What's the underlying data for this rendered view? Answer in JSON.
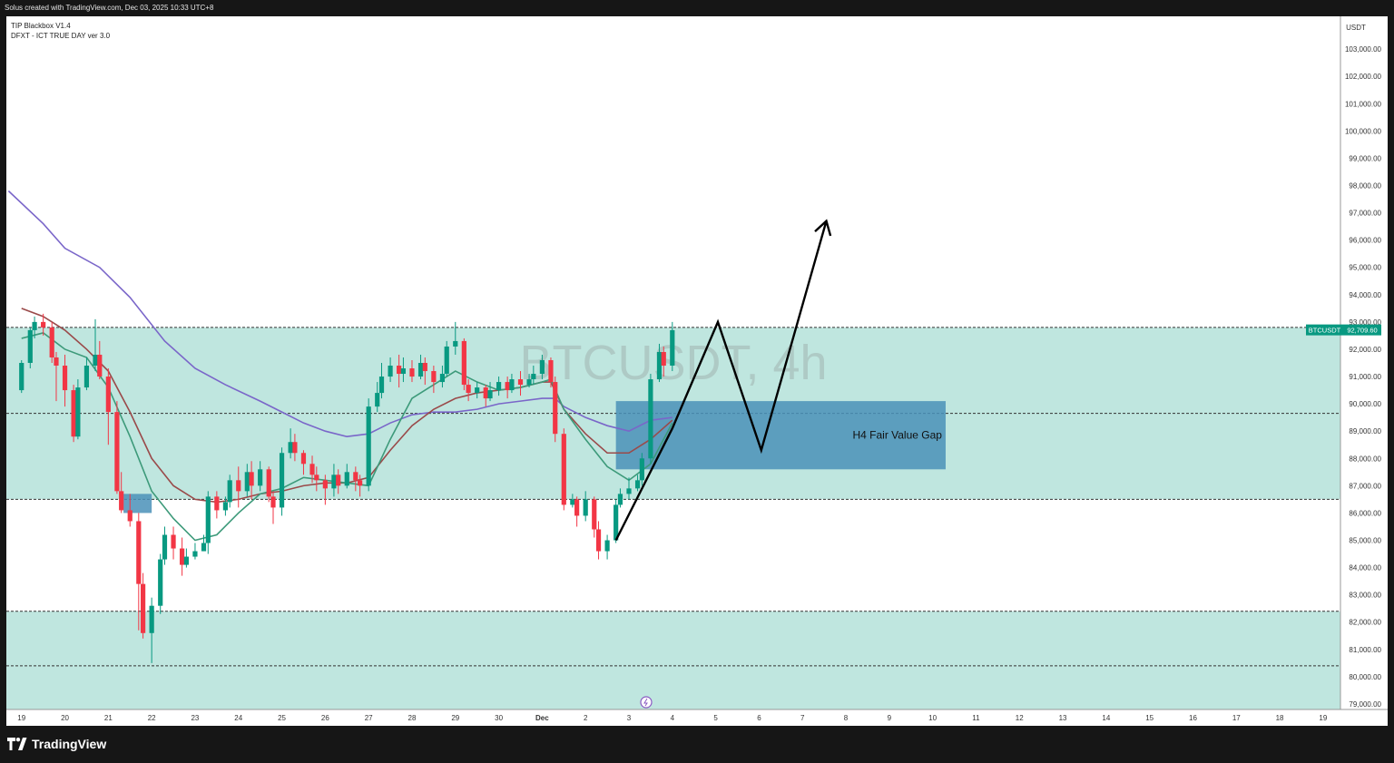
{
  "header": {
    "attribution": "Solus created with TradingView.com, Dec 03, 2025 10:33 UTC+8"
  },
  "indicators": [
    "TIP Blackbox V1.4",
    "DFXT - ICT TRUE DAY ver 3.0"
  ],
  "brand": {
    "name": "TradingView"
  },
  "watermark": "BTCUSDT, 4h",
  "colors": {
    "up": "#089981",
    "down": "#f23645",
    "zone": "#bfe6df",
    "fvg": "#4a90b8",
    "ema_green": "#3d9a7a",
    "ema_red": "#9a4a4a",
    "ema_purple": "#7a66c9"
  },
  "chart_data": {
    "type": "candlestick",
    "symbol": "BTCUSDT",
    "timeframe": "4h",
    "currency": "USDT",
    "last_price_label": "92,709.60",
    "last_price": 92709.6,
    "ylim": [
      78800,
      104200
    ],
    "y_ticks": [
      "103,000.00",
      "102,000.00",
      "101,000.00",
      "100,000.00",
      "99,000.00",
      "98,000.00",
      "97,000.00",
      "96,000.00",
      "95,000.00",
      "94,000.00",
      "93,000.00",
      "92,000.00",
      "91,000.00",
      "90,000.00",
      "89,000.00",
      "88,000.00",
      "87,000.00",
      "86,000.00",
      "85,000.00",
      "84,000.00",
      "83,000.00",
      "82,000.00",
      "81,000.00",
      "80,000.00",
      "79,000.00"
    ],
    "x_ticks": [
      "19",
      "20",
      "21",
      "22",
      "23",
      "24",
      "25",
      "26",
      "27",
      "28",
      "29",
      "30",
      "Dec",
      "2",
      "3",
      "4",
      "5",
      "6",
      "7",
      "8",
      "9",
      "10",
      "11",
      "12",
      "13",
      "14",
      "15",
      "16",
      "17",
      "18",
      "19"
    ],
    "x_tick_days": [
      19,
      20,
      21,
      22,
      23,
      24,
      25,
      26,
      27,
      28,
      29,
      30,
      31,
      32,
      33,
      34,
      35,
      36,
      37,
      38,
      39,
      40,
      41,
      42,
      43,
      44,
      45,
      46,
      47,
      48,
      49
    ],
    "xlim": [
      18.65,
      49.4
    ],
    "zones": [
      {
        "from": 86500,
        "to": 92800
      },
      {
        "from": 78800,
        "to": 82400
      }
    ],
    "dashed_levels": [
      92800,
      89650,
      86500,
      82400,
      80400
    ],
    "fvg": {
      "label": "H4 Fair Value Gap",
      "from": 87600,
      "to": 90100,
      "x_start": 32.7,
      "x_end": 40.3
    },
    "small_fvg": {
      "from": 86000,
      "to": 86700,
      "x_start": 21.35,
      "x_end": 22.0
    },
    "candles": [
      [
        19.0,
        90500,
        91500,
        90400,
        91600
      ],
      [
        19.2,
        91500,
        92700,
        91300,
        92800
      ],
      [
        19.3,
        92700,
        93000,
        92400,
        93200
      ],
      [
        19.5,
        93000,
        92800,
        92500,
        93300
      ],
      [
        19.7,
        92800,
        91700,
        91500,
        93000
      ],
      [
        19.8,
        91700,
        91400,
        90100,
        91900
      ],
      [
        20.0,
        91400,
        90500,
        89900,
        91800
      ],
      [
        20.2,
        90500,
        88800,
        88600,
        90700
      ],
      [
        20.3,
        88800,
        90600,
        88700,
        90900
      ],
      [
        20.5,
        90600,
        91400,
        90500,
        91700
      ],
      [
        20.7,
        91400,
        91800,
        91200,
        93100
      ],
      [
        20.8,
        91800,
        91000,
        90900,
        92300
      ],
      [
        21.0,
        91000,
        89700,
        88500,
        91300
      ],
      [
        21.2,
        89700,
        86800,
        86700,
        90100
      ],
      [
        21.3,
        86800,
        86100,
        86000,
        87500
      ],
      [
        21.5,
        86100,
        85700,
        85500,
        86700
      ],
      [
        21.7,
        85700,
        83400,
        81700,
        86000
      ],
      [
        21.8,
        83400,
        81600,
        81400,
        83800
      ],
      [
        22.0,
        81600,
        82600,
        80500,
        82900
      ],
      [
        22.2,
        82600,
        84300,
        82300,
        84500
      ],
      [
        22.3,
        84300,
        85200,
        84100,
        85500
      ],
      [
        22.5,
        85200,
        84700,
        84300,
        85500
      ],
      [
        22.7,
        84700,
        84100,
        83700,
        85100
      ],
      [
        22.8,
        84100,
        84400,
        84000,
        84700
      ],
      [
        23.0,
        84400,
        84600,
        84300,
        84900
      ],
      [
        23.2,
        84600,
        84900,
        84600,
        85200
      ],
      [
        23.3,
        84900,
        86600,
        84500,
        86800
      ],
      [
        23.5,
        86600,
        86100,
        85800,
        86800
      ],
      [
        23.7,
        86100,
        86400,
        85900,
        86600
      ],
      [
        23.8,
        86400,
        87200,
        86200,
        87400
      ],
      [
        24.0,
        87200,
        86800,
        86200,
        87700
      ],
      [
        24.2,
        86800,
        87500,
        86600,
        87800
      ],
      [
        24.3,
        87500,
        87000,
        86500,
        87900
      ],
      [
        24.5,
        87000,
        87600,
        86800,
        87900
      ],
      [
        24.7,
        87600,
        86600,
        86400,
        87700
      ],
      [
        24.8,
        86600,
        86200,
        85600,
        86800
      ],
      [
        25.0,
        86200,
        88200,
        85900,
        88400
      ],
      [
        25.2,
        88200,
        88600,
        88000,
        89100
      ],
      [
        25.3,
        88600,
        88200,
        87900,
        88900
      ],
      [
        25.5,
        88200,
        87800,
        87400,
        88300
      ],
      [
        25.7,
        87800,
        87400,
        87100,
        88100
      ],
      [
        25.8,
        87400,
        87200,
        86800,
        87700
      ],
      [
        26.0,
        87200,
        86900,
        86300,
        87400
      ],
      [
        26.2,
        86900,
        87400,
        86600,
        87800
      ],
      [
        26.3,
        87400,
        87000,
        86700,
        87600
      ],
      [
        26.5,
        87000,
        87500,
        86900,
        87800
      ],
      [
        26.7,
        87500,
        87200,
        86800,
        87700
      ],
      [
        26.8,
        87200,
        87000,
        86600,
        87400
      ],
      [
        27.0,
        87000,
        89900,
        86800,
        90200
      ],
      [
        27.2,
        89900,
        90400,
        89700,
        90800
      ],
      [
        27.3,
        90400,
        91000,
        90200,
        91500
      ],
      [
        27.5,
        91000,
        91400,
        90800,
        91700
      ],
      [
        27.7,
        91400,
        91100,
        90600,
        91800
      ],
      [
        27.8,
        91100,
        91300,
        90800,
        91700
      ],
      [
        28.0,
        91300,
        91000,
        90800,
        91600
      ],
      [
        28.2,
        91000,
        91500,
        90900,
        91800
      ],
      [
        28.3,
        91500,
        91200,
        90700,
        91700
      ],
      [
        28.5,
        91200,
        90800,
        90400,
        91400
      ],
      [
        28.7,
        90800,
        91100,
        90600,
        91400
      ],
      [
        28.8,
        91100,
        92100,
        91000,
        92300
      ],
      [
        29.0,
        92100,
        92300,
        91800,
        93000
      ],
      [
        29.2,
        92300,
        90700,
        90500,
        92400
      ],
      [
        29.3,
        90700,
        90400,
        90100,
        90900
      ],
      [
        29.5,
        90400,
        90600,
        90200,
        90800
      ],
      [
        29.7,
        90600,
        90200,
        89900,
        90700
      ],
      [
        29.8,
        90200,
        90500,
        90100,
        90800
      ],
      [
        30.0,
        90500,
        90800,
        90300,
        91000
      ],
      [
        30.2,
        90800,
        90500,
        90200,
        91000
      ],
      [
        30.3,
        90500,
        90900,
        90400,
        91100
      ],
      [
        30.5,
        90900,
        90700,
        90300,
        91200
      ],
      [
        30.7,
        90700,
        90900,
        90600,
        91100
      ],
      [
        30.8,
        90900,
        91100,
        90700,
        91400
      ],
      [
        31.0,
        91100,
        91600,
        90900,
        91800
      ],
      [
        31.2,
        91600,
        90800,
        90600,
        91700
      ],
      [
        31.3,
        90800,
        88900,
        88600,
        91000
      ],
      [
        31.5,
        88900,
        86300,
        86100,
        89100
      ],
      [
        31.7,
        86300,
        86500,
        86200,
        86700
      ],
      [
        31.8,
        86500,
        85900,
        85500,
        86600
      ],
      [
        32.0,
        85900,
        86500,
        85700,
        86800
      ],
      [
        32.2,
        86500,
        85400,
        85100,
        86600
      ],
      [
        32.3,
        85400,
        84600,
        84300,
        85700
      ],
      [
        32.5,
        84600,
        85000,
        84300,
        85200
      ],
      [
        32.7,
        85000,
        86300,
        84900,
        86500
      ],
      [
        32.8,
        86300,
        86700,
        86200,
        86900
      ],
      [
        33.0,
        86700,
        86900,
        86500,
        87300
      ],
      [
        33.2,
        86900,
        87200,
        86800,
        87400
      ],
      [
        33.3,
        87200,
        88000,
        87000,
        88200
      ],
      [
        33.5,
        88000,
        90900,
        87800,
        91100
      ],
      [
        33.7,
        90900,
        91900,
        90800,
        92200
      ],
      [
        33.8,
        91900,
        91400,
        91000,
        92100
      ],
      [
        34.0,
        91400,
        92700,
        91200,
        93000
      ]
    ],
    "ema_green": [
      [
        19.0,
        92400
      ],
      [
        19.5,
        92600
      ],
      [
        20.0,
        92000
      ],
      [
        20.5,
        91700
      ],
      [
        21.0,
        90600
      ],
      [
        21.5,
        88800
      ],
      [
        22.0,
        86800
      ],
      [
        22.5,
        85800
      ],
      [
        23.0,
        85000
      ],
      [
        23.5,
        85200
      ],
      [
        24.0,
        86000
      ],
      [
        24.5,
        86700
      ],
      [
        25.0,
        86900
      ],
      [
        25.5,
        87300
      ],
      [
        26.0,
        87200
      ],
      [
        26.5,
        87100
      ],
      [
        27.0,
        87000
      ],
      [
        27.5,
        88700
      ],
      [
        28.0,
        90200
      ],
      [
        28.5,
        90700
      ],
      [
        29.0,
        91200
      ],
      [
        29.5,
        90800
      ],
      [
        30.0,
        90500
      ],
      [
        30.5,
        90600
      ],
      [
        31.0,
        90800
      ],
      [
        31.2,
        90900
      ],
      [
        31.5,
        89800
      ],
      [
        32.0,
        88700
      ],
      [
        32.5,
        87700
      ],
      [
        33.0,
        87200
      ],
      [
        33.5,
        87800
      ],
      [
        34.0,
        89300
      ]
    ],
    "ema_red": [
      [
        19.0,
        93500
      ],
      [
        19.5,
        93200
      ],
      [
        20.0,
        92700
      ],
      [
        20.5,
        92000
      ],
      [
        21.0,
        91200
      ],
      [
        21.5,
        89700
      ],
      [
        22.0,
        88000
      ],
      [
        22.5,
        87000
      ],
      [
        23.0,
        86500
      ],
      [
        23.5,
        86400
      ],
      [
        24.0,
        86500
      ],
      [
        24.5,
        86700
      ],
      [
        25.0,
        86800
      ],
      [
        25.5,
        87000
      ],
      [
        26.0,
        87100
      ],
      [
        26.5,
        87100
      ],
      [
        27.0,
        87300
      ],
      [
        27.5,
        88300
      ],
      [
        28.0,
        89200
      ],
      [
        28.5,
        89800
      ],
      [
        29.0,
        90200
      ],
      [
        29.5,
        90400
      ],
      [
        30.0,
        90500
      ],
      [
        30.5,
        90600
      ],
      [
        31.0,
        90800
      ],
      [
        31.2,
        90800
      ],
      [
        31.5,
        89800
      ],
      [
        32.0,
        88900
      ],
      [
        32.5,
        88200
      ],
      [
        33.0,
        88200
      ],
      [
        33.5,
        88700
      ],
      [
        34.0,
        89400
      ]
    ],
    "ema_purple": [
      [
        18.7,
        97800
      ],
      [
        19.5,
        96600
      ],
      [
        20.0,
        95700
      ],
      [
        20.8,
        95000
      ],
      [
        21.5,
        93900
      ],
      [
        22.3,
        92300
      ],
      [
        23.0,
        91300
      ],
      [
        23.7,
        90700
      ],
      [
        24.5,
        90100
      ],
      [
        25.0,
        89700
      ],
      [
        25.5,
        89300
      ],
      [
        26.0,
        89000
      ],
      [
        26.5,
        88800
      ],
      [
        27.0,
        88900
      ],
      [
        27.5,
        89300
      ],
      [
        28.0,
        89600
      ],
      [
        28.5,
        89700
      ],
      [
        29.0,
        89700
      ],
      [
        29.5,
        89800
      ],
      [
        30.0,
        90000
      ],
      [
        30.5,
        90100
      ],
      [
        31.0,
        90200
      ],
      [
        31.3,
        90200
      ],
      [
        31.5,
        89900
      ],
      [
        32.0,
        89500
      ],
      [
        32.5,
        89200
      ],
      [
        33.0,
        89000
      ],
      [
        33.5,
        89400
      ],
      [
        34.0,
        89500
      ]
    ],
    "projection": [
      [
        32.7,
        85000
      ],
      [
        34.0,
        89100
      ],
      [
        35.05,
        93000
      ],
      [
        36.05,
        88300
      ],
      [
        37.55,
        96700
      ]
    ]
  }
}
